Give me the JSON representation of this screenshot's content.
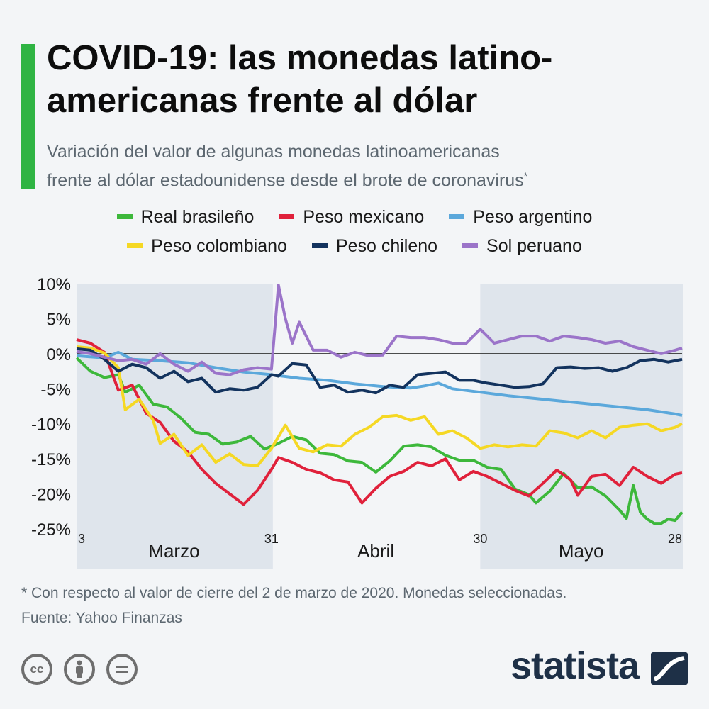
{
  "title": "COVID-19: las monedas latino-americanas frente al dólar",
  "title_line1": "COVID-19: las monedas latino-",
  "title_line2": "americanas frente al dólar",
  "subtitle_line1": "Variación del valor de algunas monedas latinoamericanas",
  "subtitle_line2": "frente al dólar estadounidense desde el brote de coronavirus",
  "subtitle_mark": "*",
  "footnote": "* Con respecto al valor de cierre del 2 de marzo de 2020. Monedas seleccionadas.",
  "source": "Fuente: Yahoo Finanzas",
  "brand": "statista",
  "license_icons": [
    "cc-icon",
    "attribution-icon",
    "noderivs-icon"
  ],
  "chart_data": {
    "type": "line",
    "ylim": [
      -25,
      10
    ],
    "yticks": [
      10,
      5,
      0,
      -5,
      -10,
      -15,
      -20,
      -25
    ],
    "ytick_labels": [
      "10%",
      "5%",
      "0%",
      "-5%",
      "-10%",
      "-15%",
      "-20%",
      "-25%"
    ],
    "x_range_days": [
      0,
      87
    ],
    "date_ticks": [
      {
        "label": "3",
        "date": "2020-03-03"
      },
      {
        "label": "31",
        "date": "2020-03-31"
      },
      {
        "label": "30",
        "date": "2020-04-30"
      },
      {
        "label": "28",
        "date": "2020-05-28"
      }
    ],
    "month_labels": [
      {
        "label": "Marzo",
        "shaded": true
      },
      {
        "label": "Abril",
        "shaded": false
      },
      {
        "label": "Mayo",
        "shaded": true
      }
    ],
    "grid": false,
    "legend_position": "top",
    "series": [
      {
        "name": "Real brasileño",
        "color": "#3db83b",
        "values": [
          [
            0,
            -0.6
          ],
          [
            2,
            -2.5
          ],
          [
            4,
            -3.4
          ],
          [
            6,
            -3.0
          ],
          [
            7,
            -5.5
          ],
          [
            9,
            -4.5
          ],
          [
            11,
            -7.2
          ],
          [
            13,
            -7.6
          ],
          [
            15,
            -9.2
          ],
          [
            17,
            -11.2
          ],
          [
            19,
            -11.5
          ],
          [
            21,
            -12.9
          ],
          [
            23,
            -12.6
          ],
          [
            25,
            -11.8
          ],
          [
            27,
            -13.6
          ],
          [
            29,
            -12.8
          ],
          [
            31,
            -11.8
          ],
          [
            33,
            -12.3
          ],
          [
            35,
            -14.2
          ],
          [
            37,
            -14.4
          ],
          [
            39,
            -15.3
          ],
          [
            41,
            -15.5
          ],
          [
            43,
            -16.9
          ],
          [
            45,
            -15.3
          ],
          [
            47,
            -13.2
          ],
          [
            49,
            -13.0
          ],
          [
            51,
            -13.3
          ],
          [
            53,
            -14.5
          ],
          [
            55,
            -15.2
          ],
          [
            57,
            -15.2
          ],
          [
            59,
            -16.2
          ],
          [
            61,
            -16.5
          ],
          [
            63,
            -19.3
          ],
          [
            65,
            -20.1
          ],
          [
            66,
            -21.3
          ],
          [
            68,
            -19.6
          ],
          [
            70,
            -17.1
          ],
          [
            72,
            -19.1
          ],
          [
            74,
            -19.0
          ],
          [
            76,
            -20.3
          ],
          [
            78,
            -22.3
          ],
          [
            79,
            -23.5
          ],
          [
            80,
            -18.8
          ],
          [
            81,
            -22.6
          ],
          [
            82,
            -23.6
          ],
          [
            83,
            -24.2
          ],
          [
            84,
            -24.2
          ],
          [
            85,
            -23.6
          ],
          [
            86,
            -23.8
          ],
          [
            87,
            -22.6
          ]
        ]
      },
      {
        "name": "Peso mexicano",
        "color": "#e0213b",
        "values": [
          [
            0,
            2.0
          ],
          [
            2,
            1.5
          ],
          [
            4,
            0.2
          ],
          [
            6,
            -5.2
          ],
          [
            8,
            -4.5
          ],
          [
            10,
            -8.5
          ],
          [
            12,
            -9.8
          ],
          [
            14,
            -12.5
          ],
          [
            16,
            -14.0
          ],
          [
            18,
            -16.5
          ],
          [
            20,
            -18.5
          ],
          [
            22,
            -20.0
          ],
          [
            24,
            -21.5
          ],
          [
            26,
            -19.5
          ],
          [
            28,
            -16.5
          ],
          [
            29,
            -14.8
          ],
          [
            31,
            -15.5
          ],
          [
            33,
            -16.5
          ],
          [
            35,
            -17.0
          ],
          [
            37,
            -18.0
          ],
          [
            39,
            -18.3
          ],
          [
            41,
            -21.3
          ],
          [
            43,
            -19.2
          ],
          [
            45,
            -17.5
          ],
          [
            47,
            -16.8
          ],
          [
            49,
            -15.5
          ],
          [
            51,
            -16.0
          ],
          [
            53,
            -15.0
          ],
          [
            55,
            -18.0
          ],
          [
            57,
            -16.8
          ],
          [
            59,
            -17.5
          ],
          [
            61,
            -18.5
          ],
          [
            63,
            -19.5
          ],
          [
            65,
            -20.3
          ],
          [
            67,
            -18.5
          ],
          [
            69,
            -16.6
          ],
          [
            71,
            -18.0
          ],
          [
            72,
            -20.2
          ],
          [
            74,
            -17.5
          ],
          [
            76,
            -17.2
          ],
          [
            78,
            -18.8
          ],
          [
            80,
            -16.2
          ],
          [
            82,
            -17.5
          ],
          [
            84,
            -18.5
          ],
          [
            86,
            -17.2
          ],
          [
            87,
            -17.0
          ]
        ]
      },
      {
        "name": "Peso argentino",
        "color": "#5ba8db",
        "values": [
          [
            0,
            -0.3
          ],
          [
            4,
            -0.6
          ],
          [
            6,
            0.2
          ],
          [
            8,
            -0.8
          ],
          [
            12,
            -1.0
          ],
          [
            16,
            -1.3
          ],
          [
            20,
            -2.0
          ],
          [
            24,
            -2.6
          ],
          [
            28,
            -3.0
          ],
          [
            32,
            -3.5
          ],
          [
            36,
            -3.8
          ],
          [
            40,
            -4.3
          ],
          [
            44,
            -4.7
          ],
          [
            48,
            -4.9
          ],
          [
            50,
            -4.6
          ],
          [
            52,
            -4.2
          ],
          [
            54,
            -5.0
          ],
          [
            58,
            -5.5
          ],
          [
            62,
            -6.0
          ],
          [
            66,
            -6.4
          ],
          [
            70,
            -6.8
          ],
          [
            74,
            -7.2
          ],
          [
            78,
            -7.6
          ],
          [
            82,
            -8.0
          ],
          [
            86,
            -8.6
          ],
          [
            87,
            -8.8
          ]
        ]
      },
      {
        "name": "Peso colombiano",
        "color": "#f5d824",
        "values": [
          [
            0,
            1.0
          ],
          [
            2,
            0.8
          ],
          [
            4,
            0.1
          ],
          [
            6,
            -2.0
          ],
          [
            7,
            -8.0
          ],
          [
            9,
            -6.5
          ],
          [
            11,
            -9.5
          ],
          [
            12,
            -12.8
          ],
          [
            14,
            -11.5
          ],
          [
            16,
            -14.5
          ],
          [
            18,
            -13.0
          ],
          [
            20,
            -15.5
          ],
          [
            22,
            -14.3
          ],
          [
            24,
            -15.8
          ],
          [
            26,
            -16.0
          ],
          [
            28,
            -13.5
          ],
          [
            30,
            -10.2
          ],
          [
            32,
            -13.5
          ],
          [
            34,
            -14.0
          ],
          [
            36,
            -13.0
          ],
          [
            38,
            -13.2
          ],
          [
            40,
            -11.5
          ],
          [
            42,
            -10.5
          ],
          [
            44,
            -9.0
          ],
          [
            46,
            -8.8
          ],
          [
            48,
            -9.5
          ],
          [
            50,
            -9.0
          ],
          [
            52,
            -11.5
          ],
          [
            54,
            -11.0
          ],
          [
            56,
            -12.0
          ],
          [
            58,
            -13.5
          ],
          [
            60,
            -13.0
          ],
          [
            62,
            -13.3
          ],
          [
            64,
            -13.0
          ],
          [
            66,
            -13.2
          ],
          [
            68,
            -11.0
          ],
          [
            70,
            -11.3
          ],
          [
            72,
            -12.0
          ],
          [
            74,
            -11.0
          ],
          [
            76,
            -12.0
          ],
          [
            78,
            -10.5
          ],
          [
            80,
            -10.2
          ],
          [
            82,
            -10.0
          ],
          [
            84,
            -11.0
          ],
          [
            86,
            -10.5
          ],
          [
            87,
            -10.0
          ]
        ]
      },
      {
        "name": "Peso chileno",
        "color": "#13335e",
        "values": [
          [
            0,
            0.7
          ],
          [
            2,
            0.5
          ],
          [
            4,
            -0.8
          ],
          [
            6,
            -2.5
          ],
          [
            8,
            -1.5
          ],
          [
            10,
            -2.0
          ],
          [
            12,
            -3.5
          ],
          [
            14,
            -2.5
          ],
          [
            16,
            -4.0
          ],
          [
            18,
            -3.5
          ],
          [
            20,
            -5.5
          ],
          [
            22,
            -5.0
          ],
          [
            24,
            -5.2
          ],
          [
            26,
            -4.8
          ],
          [
            28,
            -3.0
          ],
          [
            29,
            -3.2
          ],
          [
            31,
            -1.4
          ],
          [
            33,
            -1.6
          ],
          [
            35,
            -4.8
          ],
          [
            37,
            -4.5
          ],
          [
            39,
            -5.5
          ],
          [
            41,
            -5.2
          ],
          [
            43,
            -5.6
          ],
          [
            45,
            -4.5
          ],
          [
            47,
            -4.8
          ],
          [
            49,
            -3.0
          ],
          [
            51,
            -2.8
          ],
          [
            53,
            -2.6
          ],
          [
            55,
            -3.8
          ],
          [
            57,
            -3.8
          ],
          [
            59,
            -4.2
          ],
          [
            61,
            -4.5
          ],
          [
            63,
            -4.8
          ],
          [
            65,
            -4.7
          ],
          [
            67,
            -4.3
          ],
          [
            69,
            -2.0
          ],
          [
            71,
            -1.9
          ],
          [
            73,
            -2.1
          ],
          [
            75,
            -2.0
          ],
          [
            77,
            -2.5
          ],
          [
            79,
            -2.0
          ],
          [
            81,
            -1.0
          ],
          [
            83,
            -0.8
          ],
          [
            85,
            -1.2
          ],
          [
            87,
            -0.8
          ]
        ]
      },
      {
        "name": "Sol peruano",
        "color": "#9b74c9",
        "values": [
          [
            0,
            0.3
          ],
          [
            2,
            0.0
          ],
          [
            4,
            -0.5
          ],
          [
            6,
            -1.0
          ],
          [
            8,
            -0.8
          ],
          [
            10,
            -1.5
          ],
          [
            12,
            0.0
          ],
          [
            14,
            -1.5
          ],
          [
            16,
            -2.5
          ],
          [
            18,
            -1.2
          ],
          [
            20,
            -2.8
          ],
          [
            22,
            -3.0
          ],
          [
            24,
            -2.3
          ],
          [
            26,
            -2.0
          ],
          [
            28,
            -2.2
          ],
          [
            29,
            9.8
          ],
          [
            30,
            5.0
          ],
          [
            31,
            1.5
          ],
          [
            32,
            4.5
          ],
          [
            34,
            0.5
          ],
          [
            36,
            0.5
          ],
          [
            38,
            -0.5
          ],
          [
            40,
            0.2
          ],
          [
            42,
            -0.3
          ],
          [
            44,
            -0.2
          ],
          [
            46,
            2.5
          ],
          [
            48,
            2.3
          ],
          [
            50,
            2.3
          ],
          [
            52,
            2.0
          ],
          [
            54,
            1.5
          ],
          [
            56,
            1.5
          ],
          [
            58,
            3.5
          ],
          [
            60,
            1.5
          ],
          [
            62,
            2.0
          ],
          [
            64,
            2.5
          ],
          [
            66,
            2.5
          ],
          [
            68,
            1.8
          ],
          [
            70,
            2.5
          ],
          [
            72,
            2.3
          ],
          [
            74,
            2.0
          ],
          [
            76,
            1.5
          ],
          [
            78,
            1.8
          ],
          [
            80,
            1.0
          ],
          [
            82,
            0.5
          ],
          [
            84,
            0.0
          ],
          [
            86,
            0.5
          ],
          [
            87,
            0.8
          ]
        ]
      }
    ]
  }
}
